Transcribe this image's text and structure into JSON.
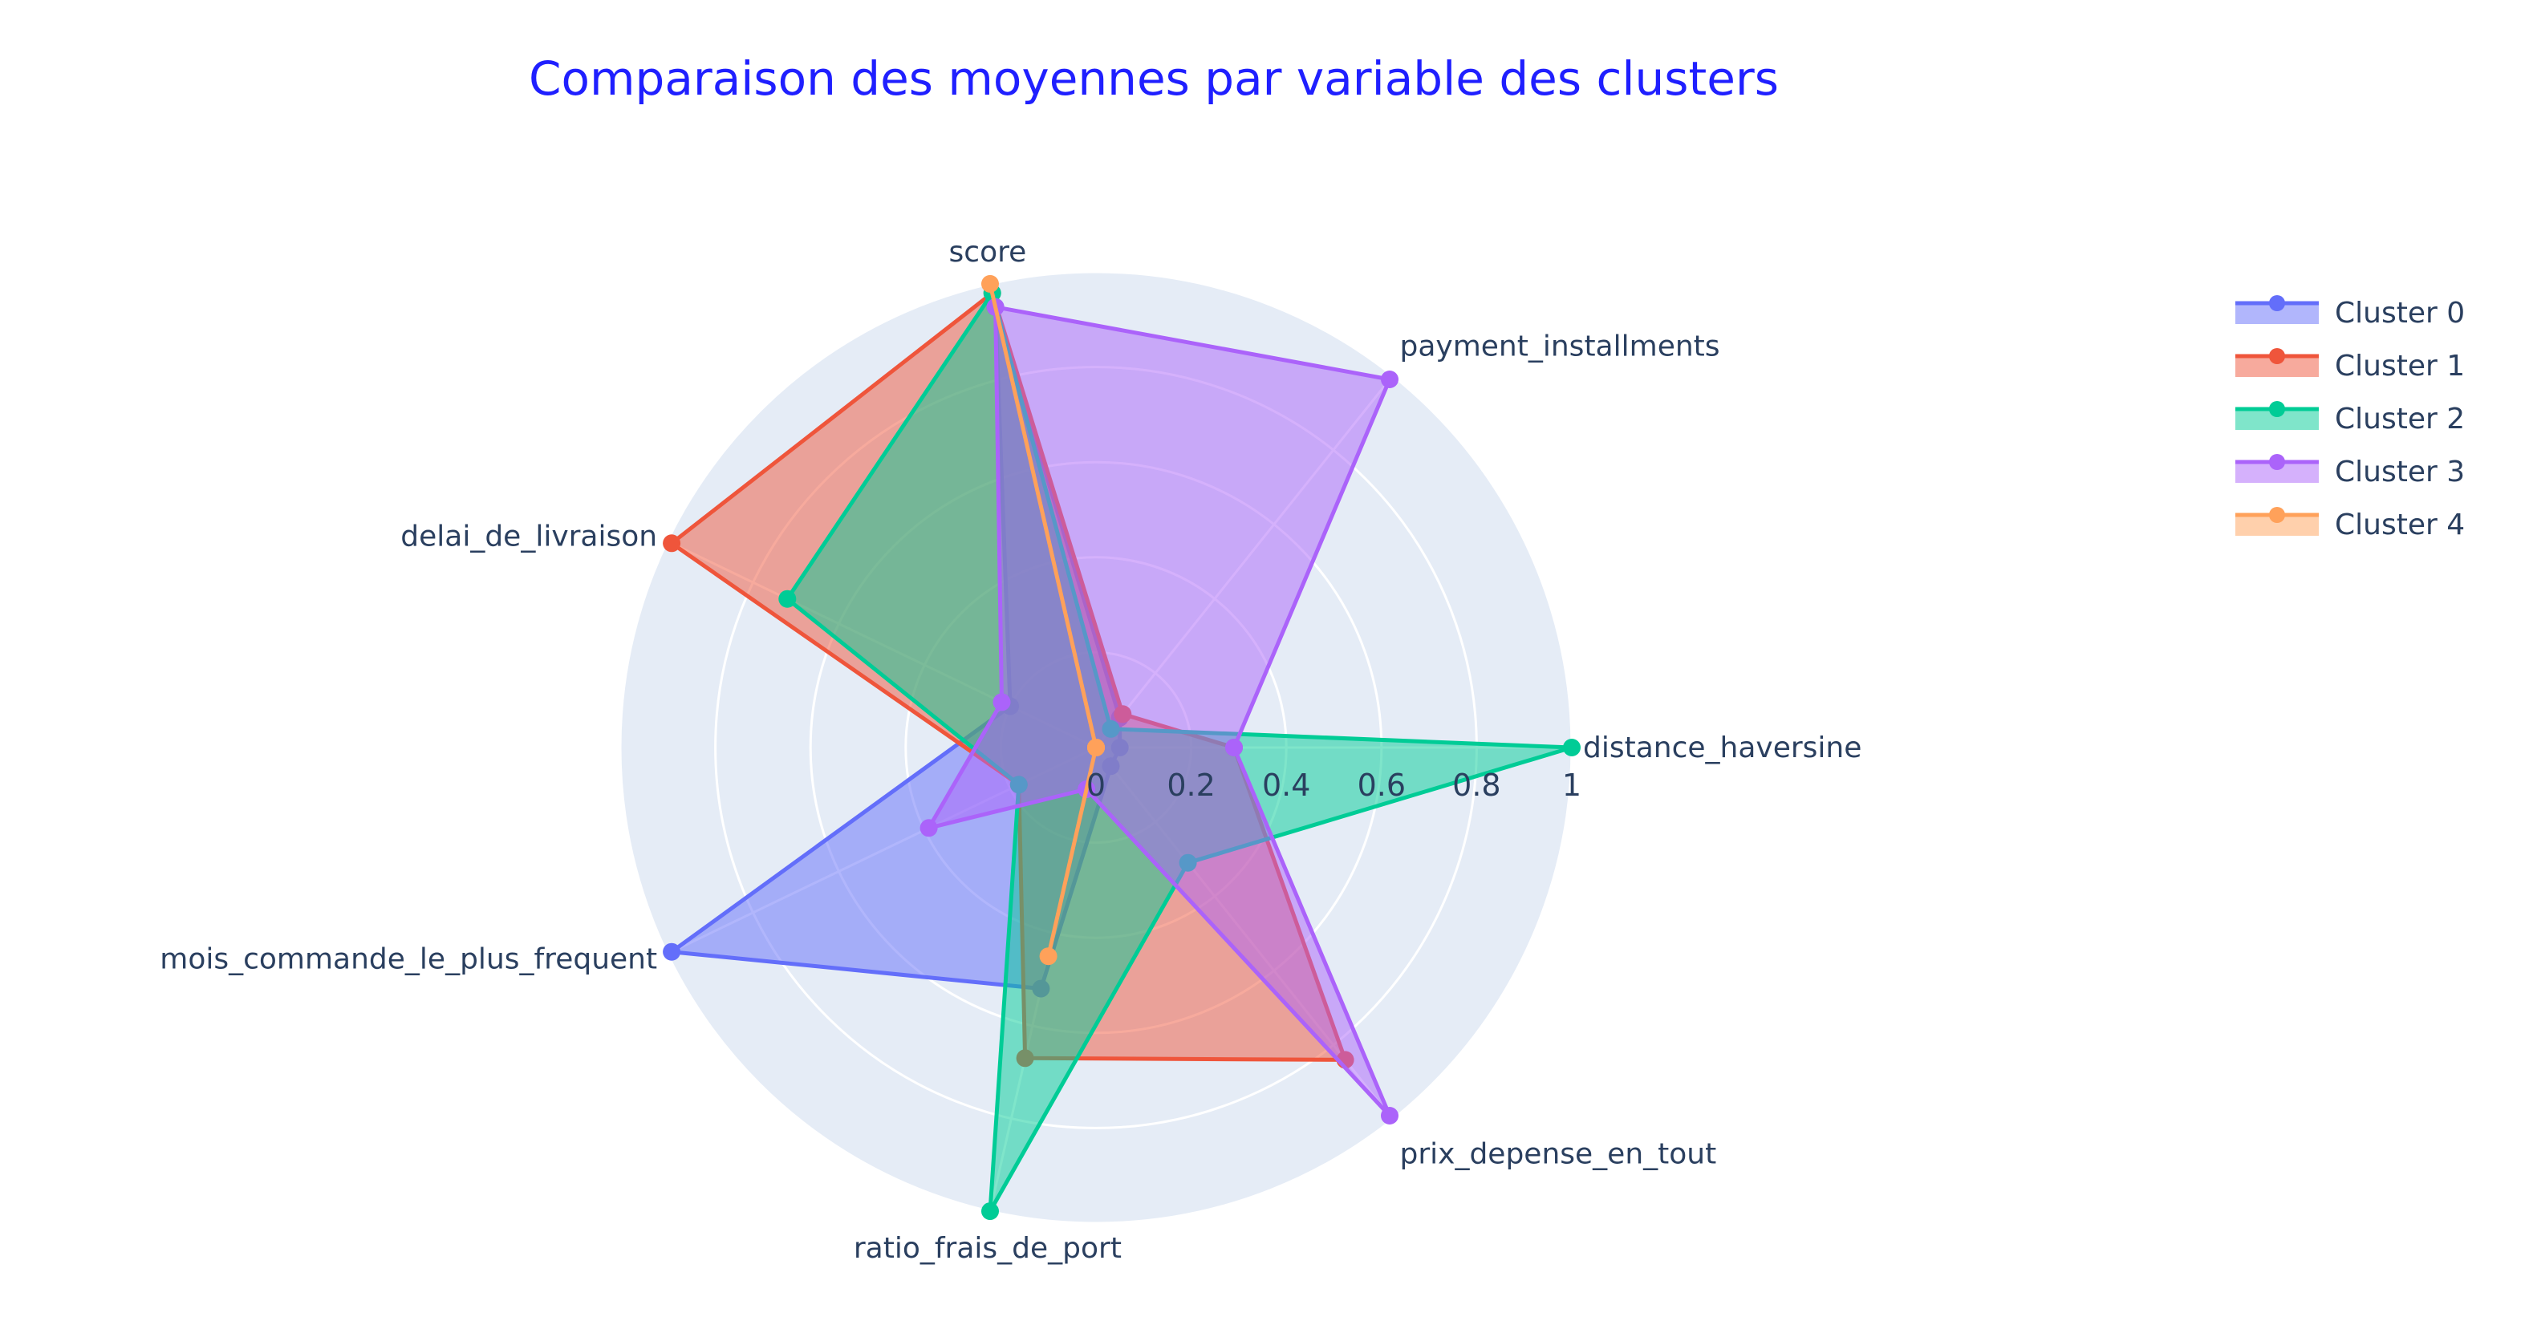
{
  "chart_data": {
    "type": "radar",
    "title": "Comparaison des moyennes par variable des clusters",
    "theta": [
      "distance_haversine",
      "payment_installments",
      "score",
      "delai_de_livraison",
      "mois_commande_le_plus_frequent",
      "ratio_frais_de_port",
      "prix_depense_en_tout"
    ],
    "radial_range": [
      0,
      1
    ],
    "radial_ticks": [
      "0",
      "0.2",
      "0.4",
      "0.6",
      "0.8",
      "1"
    ],
    "radial_tick_values": [
      0,
      0.2,
      0.4,
      0.6,
      0.8,
      1
    ],
    "grid": true,
    "legend_position": "top-right",
    "series": [
      {
        "name": "Cluster 0",
        "color": "#636efa",
        "values": [
          0.05,
          0.08,
          0.95,
          0.2,
          0.99,
          0.52,
          0.05
        ]
      },
      {
        "name": "Cluster 1",
        "color": "#ef553b",
        "values": [
          0.29,
          0.09,
          0.98,
          0.99,
          0.18,
          0.67,
          0.84
        ]
      },
      {
        "name": "Cluster 2",
        "color": "#00cc96",
        "values": [
          1.0,
          0.05,
          0.98,
          0.72,
          0.18,
          1.0,
          0.31
        ]
      },
      {
        "name": "Cluster 3",
        "color": "#ab63fa",
        "values": [
          0.29,
          0.99,
          0.95,
          0.22,
          0.39,
          0.09,
          0.99
        ]
      },
      {
        "name": "Cluster 4",
        "color": "#ffa15a",
        "values": [
          0.0,
          0.0,
          1.0,
          0.0,
          0.0,
          0.45,
          0.0
        ]
      }
    ]
  }
}
